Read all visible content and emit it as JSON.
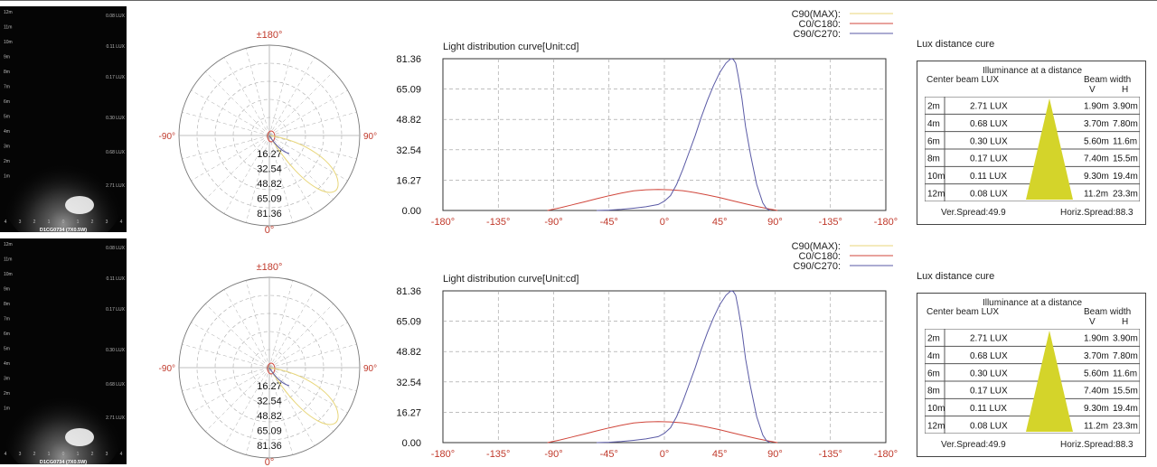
{
  "panels": [
    {
      "beam_image": {
        "model": "D1CG0734 (7X0.5W)",
        "distance_labels": [
          "12m",
          "11m",
          "10m",
          "9m",
          "8m",
          "7m",
          "6m",
          "5m",
          "4m",
          "3m",
          "2m",
          "1m"
        ],
        "lux_labels": [
          "0.08 LUX",
          "0.11 LUX",
          "0.17 LUX",
          "0.30 LUX",
          "0.68 LUX",
          "2.71 LUX"
        ],
        "x_ticks": [
          "4",
          "3",
          "2",
          "1",
          "0",
          "1",
          "2",
          "3",
          "4"
        ]
      },
      "polar": {
        "top_label": "±180°",
        "bottom_label": "0°",
        "left_label": "-90°",
        "right_label": "90°",
        "rings": [
          "16.27",
          "32.54",
          "48.82",
          "65.09",
          "81.36"
        ]
      },
      "chart_data": {
        "type": "line",
        "title": "Light distribution curve[Unit:cd]",
        "x_tick_labels": [
          "-180°",
          "-135°",
          "-90°",
          "-45°",
          "0°",
          "45°",
          "90°",
          "-135°",
          "-180°"
        ],
        "y_tick_labels": [
          "0.00",
          "16.27",
          "32.54",
          "48.82",
          "65.09",
          "81.36"
        ],
        "ylim": [
          0,
          81.36
        ],
        "xlim": [
          -180,
          180
        ],
        "legend": [
          "C90(MAX):",
          "C0/C180:",
          "C90/C270:"
        ],
        "legend_position": "top-right",
        "grid": true,
        "series": [
          {
            "name": "C90(MAX):",
            "color": "#e8d67a",
            "x": [],
            "y": []
          },
          {
            "name": "C0/C180:",
            "color": "#d0463b",
            "x": [
              -95,
              -85,
              -75,
              -65,
              -55,
              -45,
              -35,
              -25,
              -15,
              -5,
              5,
              15,
              25,
              35,
              45,
              55,
              65,
              75,
              85,
              92
            ],
            "y": [
              0,
              1.4,
              3.0,
              4.6,
              6.3,
              7.9,
              9.3,
              10.5,
              11.1,
              11.3,
              11.1,
              10.6,
              9.6,
              8.3,
              6.9,
              5.3,
              3.7,
              2.2,
              0.8,
              0
            ]
          },
          {
            "name": "C90/C270:",
            "color": "#5a5aa5",
            "x": [
              -55,
              -45,
              -35,
              -25,
              -15,
              -5,
              0,
              5,
              10,
              15,
              20,
              25,
              30,
              35,
              40,
              45,
              50,
              54,
              56,
              58,
              60,
              63,
              66,
              70,
              75,
              80,
              83,
              86
            ],
            "y": [
              0,
              0.2,
              0.6,
              1.2,
              2.0,
              3.2,
              5.0,
              8.0,
              14.0,
              22.0,
              31.0,
              40.0,
              50.0,
              59.0,
              67.0,
              74.0,
              79.0,
              81.36,
              81.0,
              79.0,
              72.0,
              60.0,
              45.0,
              30.0,
              14.0,
              4.0,
              1.0,
              0
            ]
          }
        ]
      },
      "lux": {
        "title": "Lux distance cure",
        "heading": "Illuminance at a distance",
        "center_label": "Center beam LUX",
        "beam_label": "Beam width",
        "v_label": "V",
        "h_label": "H",
        "rows": [
          {
            "d": "2m",
            "lux": "2.71 LUX",
            "v": "1.90m",
            "h": "3.90m"
          },
          {
            "d": "4m",
            "lux": "0.68 LUX",
            "v": "3.70m",
            "h": "7.80m"
          },
          {
            "d": "6m",
            "lux": "0.30 LUX",
            "v": "5.60m",
            "h": "11.6m"
          },
          {
            "d": "8m",
            "lux": "0.17 LUX",
            "v": "7.40m",
            "h": "15.5m"
          },
          {
            "d": "10m",
            "lux": "0.11 LUX",
            "v": "9.30m",
            "h": "19.4m"
          },
          {
            "d": "12m",
            "lux": "0.08 LUX",
            "v": "11.2m",
            "h": "23.3m"
          }
        ],
        "ver_spread": "Ver.Spread:49.9",
        "hor_spread": "Horiz.Spread:88.3",
        "cone_color": "#d4d42a"
      }
    },
    {
      "beam_image": {
        "model": "D1CG0734 (7X0.5W)",
        "distance_labels": [
          "12m",
          "11m",
          "10m",
          "9m",
          "8m",
          "7m",
          "6m",
          "5m",
          "4m",
          "3m",
          "2m",
          "1m"
        ],
        "lux_labels": [
          "0.08 LUX",
          "0.11 LUX",
          "0.17 LUX",
          "0.30 LUX",
          "0.68 LUX",
          "2.71 LUX"
        ],
        "x_ticks": [
          "4",
          "3",
          "2",
          "1",
          "0",
          "1",
          "2",
          "3",
          "4"
        ]
      },
      "polar": {
        "top_label": "±180°",
        "bottom_label": "0°",
        "left_label": "-90°",
        "right_label": "90°",
        "rings": [
          "16.27",
          "32.54",
          "48.82",
          "65.09",
          "81.36"
        ]
      },
      "chart_data": {
        "type": "line",
        "title": "Light distribution curve[Unit:cd]",
        "x_tick_labels": [
          "-180°",
          "-135°",
          "-90°",
          "-45°",
          "0°",
          "45°",
          "90°",
          "-135°",
          "-180°"
        ],
        "y_tick_labels": [
          "0.00",
          "16.27",
          "32.54",
          "48.82",
          "65.09",
          "81.36"
        ],
        "ylim": [
          0,
          81.36
        ],
        "xlim": [
          -180,
          180
        ],
        "legend": [
          "C90(MAX):",
          "C0/C180:",
          "C90/C270:"
        ],
        "legend_position": "top-right",
        "grid": true,
        "series": [
          {
            "name": "C90(MAX):",
            "color": "#e8d67a",
            "x": [],
            "y": []
          },
          {
            "name": "C0/C180:",
            "color": "#d0463b",
            "x": [
              -95,
              -85,
              -75,
              -65,
              -55,
              -45,
              -35,
              -25,
              -15,
              -5,
              5,
              15,
              25,
              35,
              45,
              55,
              65,
              75,
              85,
              92
            ],
            "y": [
              0,
              1.4,
              3.0,
              4.6,
              6.3,
              7.9,
              9.3,
              10.5,
              11.1,
              11.3,
              11.1,
              10.6,
              9.6,
              8.3,
              6.9,
              5.3,
              3.7,
              2.2,
              0.8,
              0
            ]
          },
          {
            "name": "C90/C270:",
            "color": "#5a5aa5",
            "x": [
              -55,
              -45,
              -35,
              -25,
              -15,
              -5,
              0,
              5,
              10,
              15,
              20,
              25,
              30,
              35,
              40,
              45,
              50,
              54,
              56,
              58,
              60,
              63,
              66,
              70,
              75,
              80,
              83,
              86
            ],
            "y": [
              0,
              0.2,
              0.6,
              1.2,
              2.0,
              3.2,
              5.0,
              8.0,
              14.0,
              22.0,
              31.0,
              40.0,
              50.0,
              59.0,
              67.0,
              74.0,
              79.0,
              81.36,
              81.0,
              79.0,
              72.0,
              60.0,
              45.0,
              30.0,
              14.0,
              4.0,
              1.0,
              0
            ]
          }
        ]
      },
      "lux": {
        "title": "Lux distance cure",
        "heading": "Illuminance at a distance",
        "center_label": "Center beam LUX",
        "beam_label": "Beam width",
        "v_label": "V",
        "h_label": "H",
        "rows": [
          {
            "d": "2m",
            "lux": "2.71 LUX",
            "v": "1.90m",
            "h": "3.90m"
          },
          {
            "d": "4m",
            "lux": "0.68 LUX",
            "v": "3.70m",
            "h": "7.80m"
          },
          {
            "d": "6m",
            "lux": "0.30 LUX",
            "v": "5.60m",
            "h": "11.6m"
          },
          {
            "d": "8m",
            "lux": "0.17 LUX",
            "v": "7.40m",
            "h": "15.5m"
          },
          {
            "d": "10m",
            "lux": "0.11 LUX",
            "v": "9.30m",
            "h": "19.4m"
          },
          {
            "d": "12m",
            "lux": "0.08 LUX",
            "v": "11.2m",
            "h": "23.3m"
          }
        ],
        "ver_spread": "Ver.Spread:49.9",
        "hor_spread": "Horiz.Spread:88.3",
        "cone_color": "#d4d42a"
      }
    }
  ]
}
